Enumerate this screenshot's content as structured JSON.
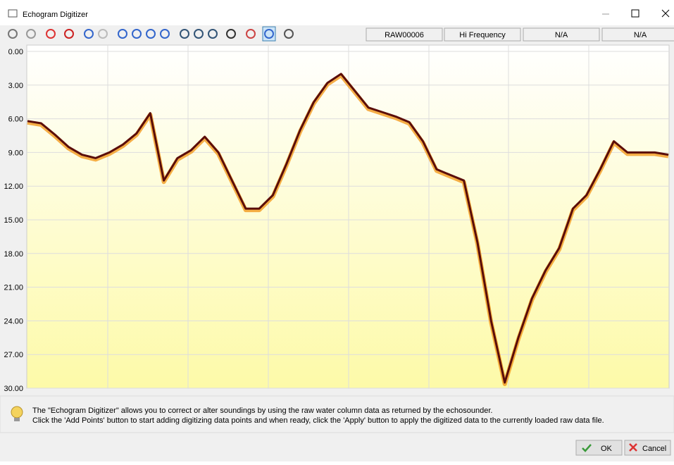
{
  "window": {
    "title": "Echogram Digitizer"
  },
  "toolbar": {
    "status": [
      "RAW00006",
      "Hi Frequency",
      "N/A",
      "N/A"
    ]
  },
  "chart_data": {
    "type": "line",
    "categories": [
      null,
      null,
      null,
      null,
      null,
      null,
      null,
      null,
      null,
      null,
      null,
      null,
      null,
      null,
      null,
      null,
      null,
      null,
      null,
      null,
      null,
      null,
      null,
      null,
      null,
      null,
      null,
      null,
      null,
      null,
      null,
      null,
      null,
      null,
      null,
      null,
      null,
      null,
      null,
      null,
      null,
      null,
      null,
      null,
      null,
      null,
      null,
      null
    ],
    "series": [
      {
        "color": "#5a0d0a",
        "values": [
          6.2,
          6.4,
          7.4,
          8.5,
          9.2,
          9.5,
          9.0,
          8.3,
          7.3,
          5.5,
          11.5,
          9.5,
          8.8,
          7.6,
          9.0,
          11.5,
          14.0,
          14.0,
          12.8,
          10.0,
          7.0,
          4.5,
          2.8,
          2.0,
          3.5,
          5.0,
          5.4,
          5.8,
          6.3,
          8.0,
          10.5,
          11.0,
          11.5,
          17.0,
          24.0,
          29.5,
          25.5,
          22.0,
          19.5,
          17.5,
          14.0,
          12.8,
          10.5,
          8.0,
          9.0,
          9.0,
          9.0,
          9.2
        ]
      }
    ],
    "ylim": [
      0,
      30
    ],
    "yticks": [
      {
        "value": 0,
        "label": "0.00"
      },
      {
        "value": 3,
        "label": "3.00"
      },
      {
        "value": 6,
        "label": "6.00"
      },
      {
        "value": 9,
        "label": "9.00"
      },
      {
        "value": 12,
        "label": "12.00"
      },
      {
        "value": 15,
        "label": "15.00"
      },
      {
        "value": 18,
        "label": "18.00"
      },
      {
        "value": 21,
        "label": "21.00"
      },
      {
        "value": 24,
        "label": "24.00"
      },
      {
        "value": 27,
        "label": "27.00"
      },
      {
        "value": 30,
        "label": "30.00"
      }
    ],
    "grid": true,
    "inverted": true
  },
  "info": {
    "lines": [
      "The \"Echogram Digitizer\" allows you to correct or alter soundings by using the raw water column data as returned by the echosounder.",
      "Click the 'Add Points' button to start adding digitizing data points and when ready, click the 'Apply' button to apply the digitized data to the currently loaded raw data file."
    ]
  },
  "buttons": {
    "ok": "OK",
    "cancel": "Cancel"
  }
}
